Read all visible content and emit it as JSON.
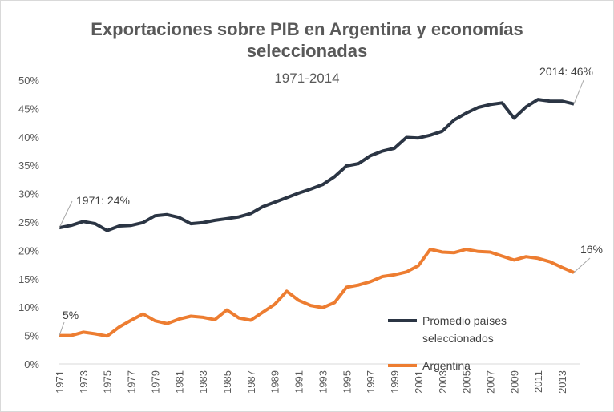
{
  "chart_data": {
    "type": "line",
    "title_line1": "Exportaciones sobre PIB en Argentina y economías",
    "title_line2": "seleccionadas",
    "subtitle": "1971-2014",
    "x": [
      1971,
      1972,
      1973,
      1974,
      1975,
      1976,
      1977,
      1978,
      1979,
      1980,
      1981,
      1982,
      1983,
      1984,
      1985,
      1986,
      1987,
      1988,
      1989,
      1990,
      1991,
      1992,
      1993,
      1994,
      1995,
      1996,
      1997,
      1998,
      1999,
      2000,
      2001,
      2002,
      2003,
      2004,
      2005,
      2006,
      2007,
      2008,
      2009,
      2010,
      2011,
      2012,
      2013,
      2014
    ],
    "x_tick_labels": [
      "1971",
      "1973",
      "1975",
      "1977",
      "1979",
      "1981",
      "1983",
      "1985",
      "1987",
      "1989",
      "1991",
      "1993",
      "1995",
      "1997",
      "1999",
      "2001",
      "2003",
      "2005",
      "2007",
      "2009",
      "2011",
      "2013"
    ],
    "y_tick_labels": [
      "0%",
      "5%",
      "10%",
      "15%",
      "20%",
      "25%",
      "30%",
      "35%",
      "40%",
      "45%",
      "50%"
    ],
    "ylim": [
      0,
      50
    ],
    "grid": false,
    "legend_position": "bottom-right",
    "series": [
      {
        "name": "Promedio países seleccionados",
        "name_line1": "Promedio países",
        "name_line2": "seleccionados",
        "color": "#2b3544",
        "values": [
          24.0,
          24.4,
          25.1,
          24.7,
          23.5,
          24.3,
          24.4,
          24.9,
          26.1,
          26.3,
          25.8,
          24.7,
          24.9,
          25.3,
          25.6,
          25.9,
          26.5,
          27.7,
          28.5,
          29.3,
          30.1,
          30.8,
          31.6,
          33.0,
          34.9,
          35.3,
          36.7,
          37.5,
          38.0,
          39.9,
          39.8,
          40.3,
          41.0,
          43.0,
          44.2,
          45.2,
          45.7,
          46.0,
          43.3,
          45.3,
          46.6,
          46.3,
          46.3,
          45.8
        ]
      },
      {
        "name": "Argentina",
        "color": "#ed7d31",
        "values": [
          5.0,
          5.0,
          5.6,
          5.3,
          4.9,
          6.5,
          7.7,
          8.8,
          7.6,
          7.1,
          7.9,
          8.4,
          8.2,
          7.8,
          9.5,
          8.1,
          7.7,
          9.1,
          10.5,
          12.8,
          11.2,
          10.3,
          9.9,
          10.8,
          13.5,
          13.9,
          14.5,
          15.4,
          15.7,
          16.2,
          17.3,
          20.2,
          19.7,
          19.6,
          20.2,
          19.8,
          19.7,
          19.0,
          18.3,
          18.9,
          18.6,
          18.0,
          17.0,
          16.1
        ]
      }
    ],
    "annotations": {
      "avg_start": "1971: 24%",
      "avg_end": "2014: 46%",
      "arg_start": "5%",
      "arg_end": "16%"
    }
  }
}
